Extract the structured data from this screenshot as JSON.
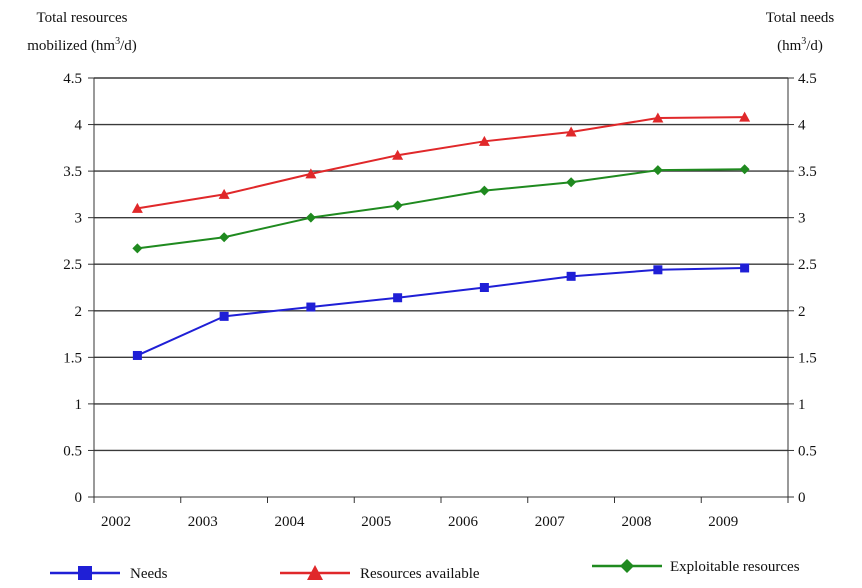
{
  "chart_data": {
    "type": "line",
    "title": "",
    "ylabel_left": {
      "line1": "Total resources",
      "line2_prefix": "mobilized (hm",
      "line2_sup": "3",
      "line2_suffix": "/d)"
    },
    "ylabel_right": {
      "line1": "Total needs",
      "line2_prefix": "(hm",
      "line2_sup": "3",
      "line2_suffix": "/d)"
    },
    "x": [
      "2002",
      "2003",
      "2004",
      "2005",
      "2006",
      "2007",
      "2008",
      "2009"
    ],
    "yticks": [
      "0",
      "0.5",
      "1",
      "1.5",
      "2",
      "2.5",
      "3",
      "3.5",
      "4",
      "4.5"
    ],
    "ylim": [
      0,
      4.5
    ],
    "grid": true,
    "legend_position": "bottom",
    "series": [
      {
        "name": "Needs",
        "color": "#1f1fd6",
        "marker": "square",
        "values": [
          1.52,
          1.94,
          2.04,
          2.14,
          2.25,
          2.37,
          2.44,
          2.46
        ]
      },
      {
        "name": "Resources available",
        "color": "#e0282a",
        "marker": "triangle",
        "values": [
          3.1,
          3.25,
          3.47,
          3.67,
          3.82,
          3.92,
          4.07,
          4.08
        ]
      },
      {
        "name": "Exploitable resources",
        "color": "#1f8a1f",
        "marker": "diamond",
        "values": [
          2.67,
          2.79,
          3.0,
          3.13,
          3.29,
          3.38,
          3.51,
          3.52
        ]
      }
    ]
  }
}
